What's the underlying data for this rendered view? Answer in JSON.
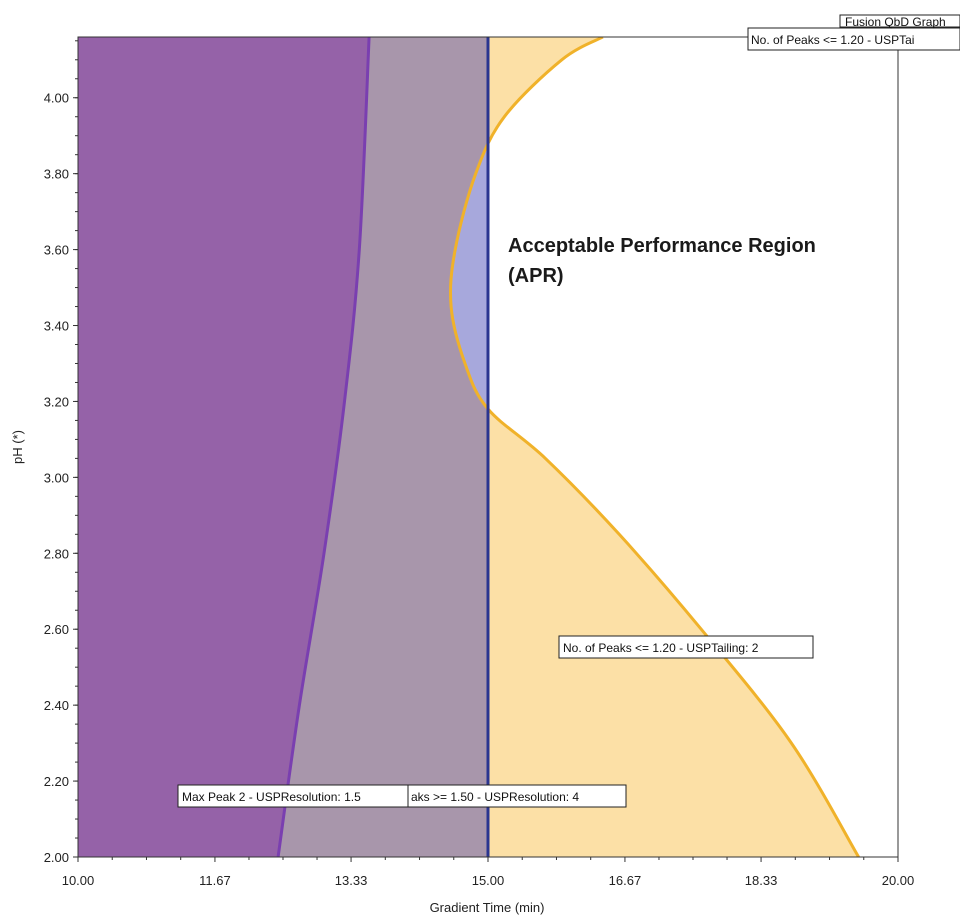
{
  "chart_data": {
    "type": "area",
    "title": "Fusion QbD Graph",
    "xlabel": "Gradient Time (min)",
    "ylabel": "pH (*)",
    "xlim": [
      10.0,
      20.0
    ],
    "ylim": [
      2.0,
      4.16
    ],
    "x_ticks": [
      "10.00",
      "11.67",
      "13.33",
      "15.00",
      "16.67",
      "18.33",
      "20.00"
    ],
    "y_ticks": [
      "2.00",
      "2.20",
      "2.40",
      "2.60",
      "2.80",
      "3.00",
      "3.20",
      "3.40",
      "3.60",
      "3.80",
      "4.00"
    ],
    "regions": [
      {
        "boundary": "Max Peak 2 - USPResolution: 1.5",
        "color": "#9562a8",
        "edge_color": "#7a3fb0",
        "fill_side": "left",
        "boundary_points": [
          [
            12.44,
            2.0
          ],
          [
            12.7,
            2.4
          ],
          [
            13.0,
            2.8
          ],
          [
            13.25,
            3.2
          ],
          [
            13.43,
            3.6
          ],
          [
            13.55,
            4.16
          ]
        ]
      },
      {
        "boundary": "No. of Peaks >= 1.50 - USPResolution: 4",
        "color": "#a896ab",
        "edge_color": "#2a3590",
        "fill_side": "left",
        "boundary_points": [
          [
            15.0,
            2.0
          ],
          [
            15.0,
            4.16
          ]
        ]
      },
      {
        "boundary": "No. of Peaks <= 1.20 - USPTailing: 2",
        "color": "#fce0a6",
        "edge_color": "#f0b22a",
        "fill_side": "outside",
        "boundary_points": [
          [
            19.52,
            2.0
          ],
          [
            18.7,
            2.3
          ],
          [
            17.6,
            2.6
          ],
          [
            16.6,
            2.85
          ],
          [
            15.7,
            3.05
          ],
          [
            15.0,
            3.18
          ],
          [
            14.72,
            3.3
          ],
          [
            14.55,
            3.45
          ],
          [
            14.6,
            3.6
          ],
          [
            14.85,
            3.8
          ],
          [
            15.2,
            3.95
          ],
          [
            15.9,
            4.1
          ],
          [
            16.4,
            4.16
          ]
        ]
      }
    ],
    "apr_overlap_color": "#a7a8dc",
    "apr_label_lines": [
      "Acceptable Performance Region",
      "(APR)"
    ],
    "annotations": [
      "Max Peak 2 - USPResolution: 1.5",
      "aks >= 1.50 - USPResolution: 4",
      "No. of Peaks <= 1.20 - USPTailing: 2",
      "No. of Peaks <= 1.20 - USPTai",
      "Fusion QbD Graph"
    ]
  }
}
